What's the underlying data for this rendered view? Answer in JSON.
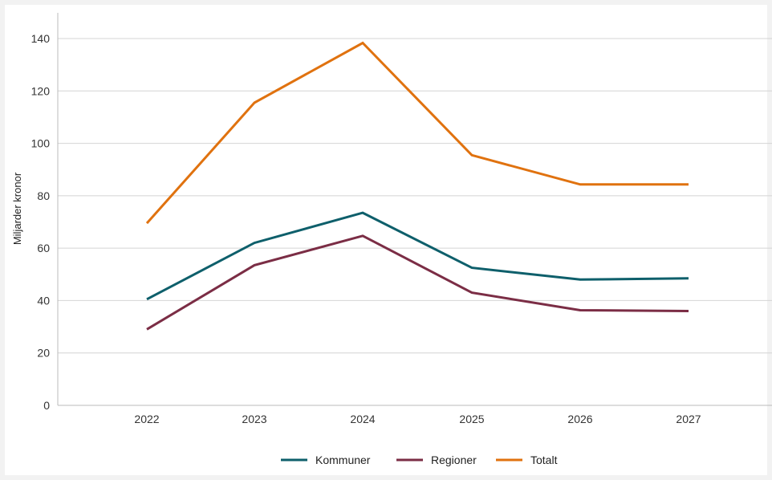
{
  "chart_data": {
    "type": "line",
    "title": "",
    "xlabel": "",
    "ylabel": "Miljarder kronor",
    "categories": [
      "2022",
      "2023",
      "2024",
      "2025",
      "2026",
      "2027"
    ],
    "ylim": [
      0,
      140
    ],
    "yticks": [
      0,
      20,
      40,
      60,
      80,
      100,
      120,
      140
    ],
    "grid": "horizontal",
    "legend_position": "bottom",
    "series": [
      {
        "name": "Kommuner",
        "color": "#0e5f6b",
        "values": [
          40.5,
          62,
          73.5,
          52.5,
          48,
          48.5
        ]
      },
      {
        "name": "Regioner",
        "color": "#7b2d45",
        "values": [
          29,
          53.5,
          64.7,
          43,
          36.3,
          36
        ]
      },
      {
        "name": "Totalt",
        "color": "#e0720f",
        "values": [
          69.5,
          115.5,
          138.3,
          95.5,
          84.3,
          84.3
        ]
      }
    ]
  }
}
